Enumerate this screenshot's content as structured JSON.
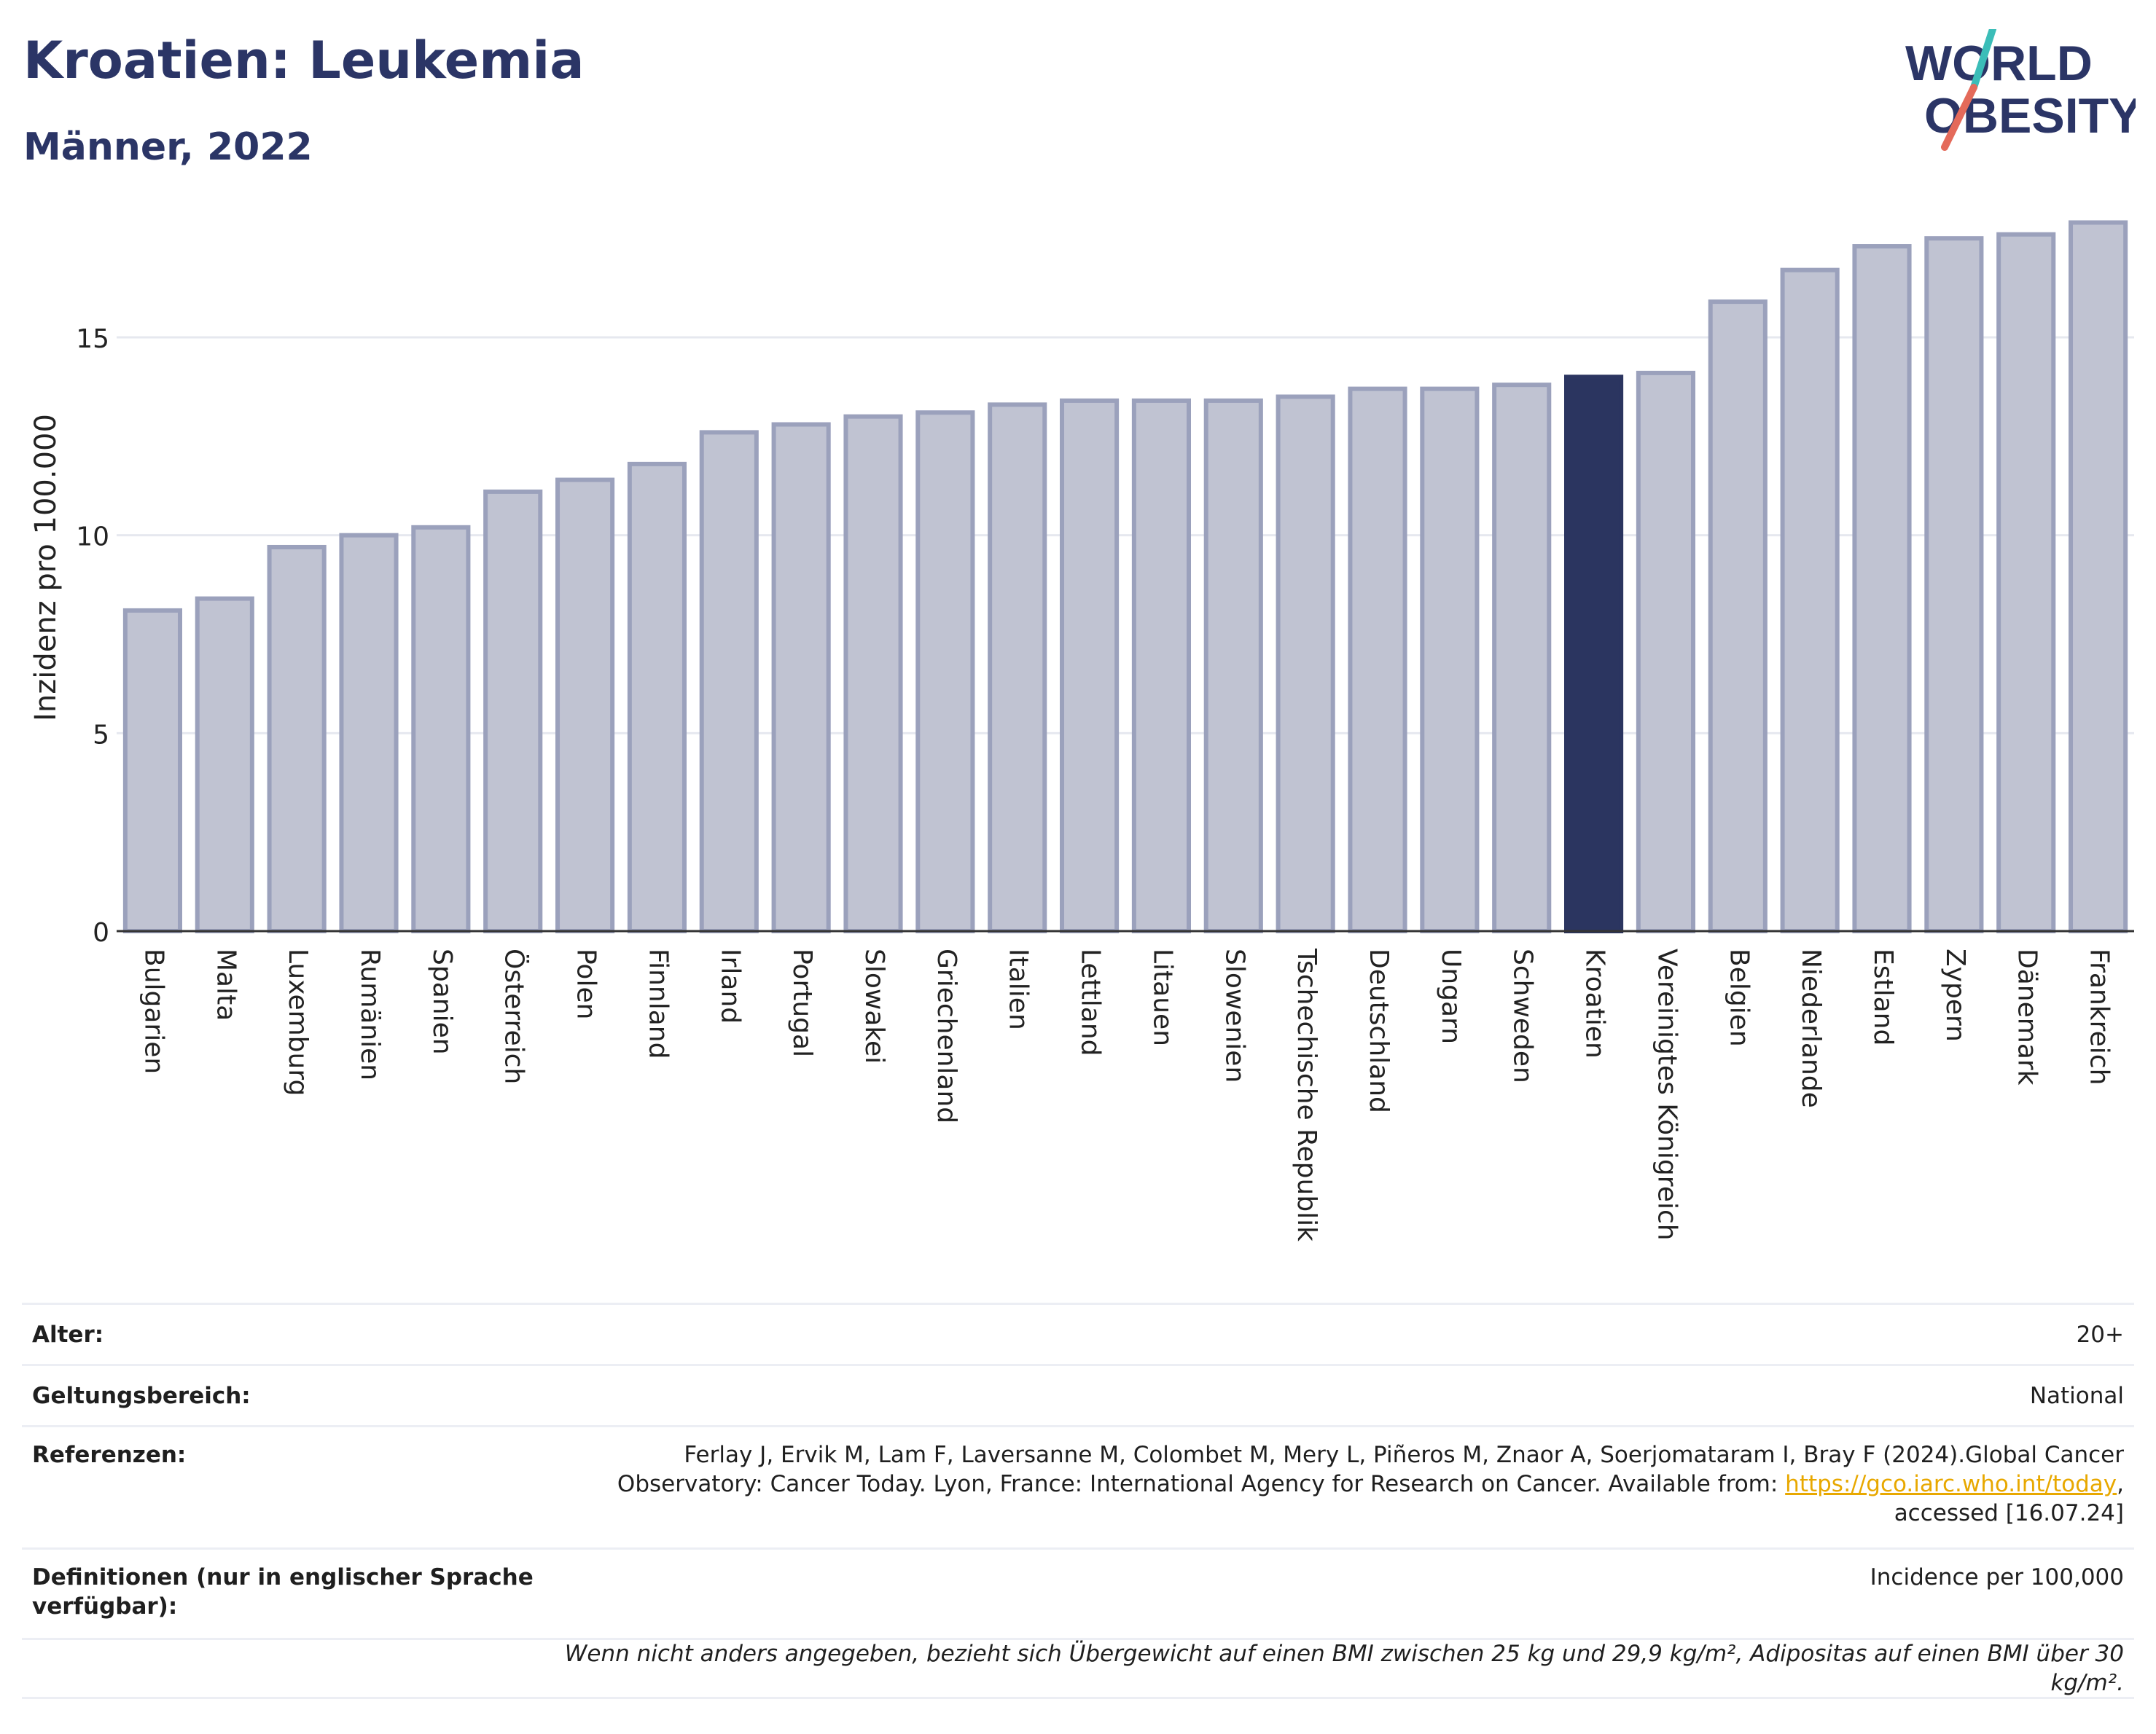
{
  "header": {
    "title": "Kroatien: Leukemia",
    "subtitle": "Männer, 2022"
  },
  "logo": {
    "line1": "WORLD",
    "line2": "OBESITY"
  },
  "colors": {
    "bar_fill": "#c0c3d2",
    "bar_stroke": "#9ba1bc",
    "highlight": "#2b3560",
    "grid": "#e6e8ef",
    "logo_text": "#2b3566",
    "logo_slash_teal": "#3bbdb8",
    "logo_slash_red": "#e46a5a"
  },
  "chart_data": {
    "type": "bar",
    "ylabel": "Inzidenz pro 100.000",
    "xlabel": "",
    "ylim": [
      0,
      18
    ],
    "yticks": [
      0,
      5,
      10,
      15
    ],
    "grid": true,
    "highlight_category": "Kroatien",
    "categories": [
      "Bulgarien",
      "Malta",
      "Luxemburg",
      "Rumänien",
      "Spanien",
      "Österreich",
      "Polen",
      "Finnland",
      "Irland",
      "Portugal",
      "Slowakei",
      "Griechenland",
      "Italien",
      "Lettland",
      "Litauen",
      "Slowenien",
      "Tschechische Republik",
      "Deutschland",
      "Ungarn",
      "Schweden",
      "Kroatien",
      "Vereinigtes Königreich",
      "Belgien",
      "Niederlande",
      "Estland",
      "Zypern",
      "Dänemark",
      "Frankreich"
    ],
    "values": [
      8.1,
      8.4,
      9.7,
      10.0,
      10.2,
      11.1,
      11.4,
      11.8,
      12.6,
      12.8,
      13.0,
      13.1,
      13.3,
      13.4,
      13.4,
      13.4,
      13.5,
      13.7,
      13.7,
      13.8,
      14.0,
      14.1,
      15.9,
      16.7,
      17.3,
      17.5,
      17.6,
      17.9
    ]
  },
  "meta": {
    "age_label": "Alter:",
    "age_value": "20+",
    "scope_label": "Geltungsbereich:",
    "scope_value": "National",
    "refs_label": "Referenzen:",
    "refs_text_1": "Ferlay J, Ervik M, Lam F, Laversanne M, Colombet M, Mery L, Piñeros M, Znaor A, Soerjomataram I, Bray F (2024).Global Cancer Observatory: Cancer Today. Lyon, France: International Agency for Research on Cancer. Available from: ",
    "refs_link": "https://gco.iarc.who.int/today",
    "refs_text_2": ", accessed [16.07.24]",
    "defs_label": "Definitionen (nur in englischer Sprache verfügbar):",
    "defs_value": "Incidence per 100,000",
    "note": "Wenn nicht anders angegeben, bezieht sich Übergewicht auf einen BMI zwischen 25 kg und 29,9 kg/m², Adipositas auf einen BMI über 30 kg/m²."
  }
}
